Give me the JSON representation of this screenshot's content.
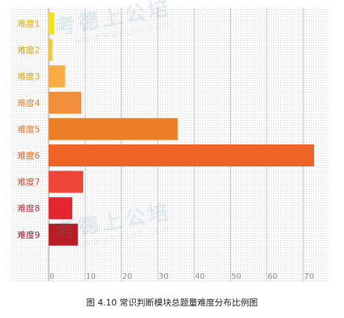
{
  "chart_data": {
    "type": "bar",
    "orientation": "horizontal",
    "categories": [
      "难度1",
      "难度2",
      "难度3",
      "难度4",
      "难度5",
      "难度6",
      "难度7",
      "难度8",
      "难度9"
    ],
    "values": [
      1.5,
      1.0,
      4.5,
      9.0,
      35.5,
      73.0,
      9.5,
      6.5,
      8.0
    ],
    "colors": [
      "#f2e024",
      "#f6c53c",
      "#f7ac44",
      "#f18f3b",
      "#ec7f25",
      "#ee6427",
      "#ee4637",
      "#e52630",
      "#b71e24"
    ],
    "label_colors": [
      "#e0b000",
      "#e0a000",
      "#e0a000",
      "#e08030",
      "#e07020",
      "#e06020",
      "#e04030",
      "#d02030",
      "#a01020"
    ],
    "xticks": [
      0,
      10,
      20,
      30,
      40,
      50,
      60,
      70
    ],
    "xlim": [
      0,
      75
    ],
    "grid": true,
    "title": "",
    "xlabel": "",
    "ylabel": ""
  },
  "caption": "图 4.10 常识判断模块总题量难度分布比例图",
  "watermark": {
    "text": "考德上公培",
    "url": "WWW.KDS100.COM",
    "color": "#4a7fb0"
  }
}
